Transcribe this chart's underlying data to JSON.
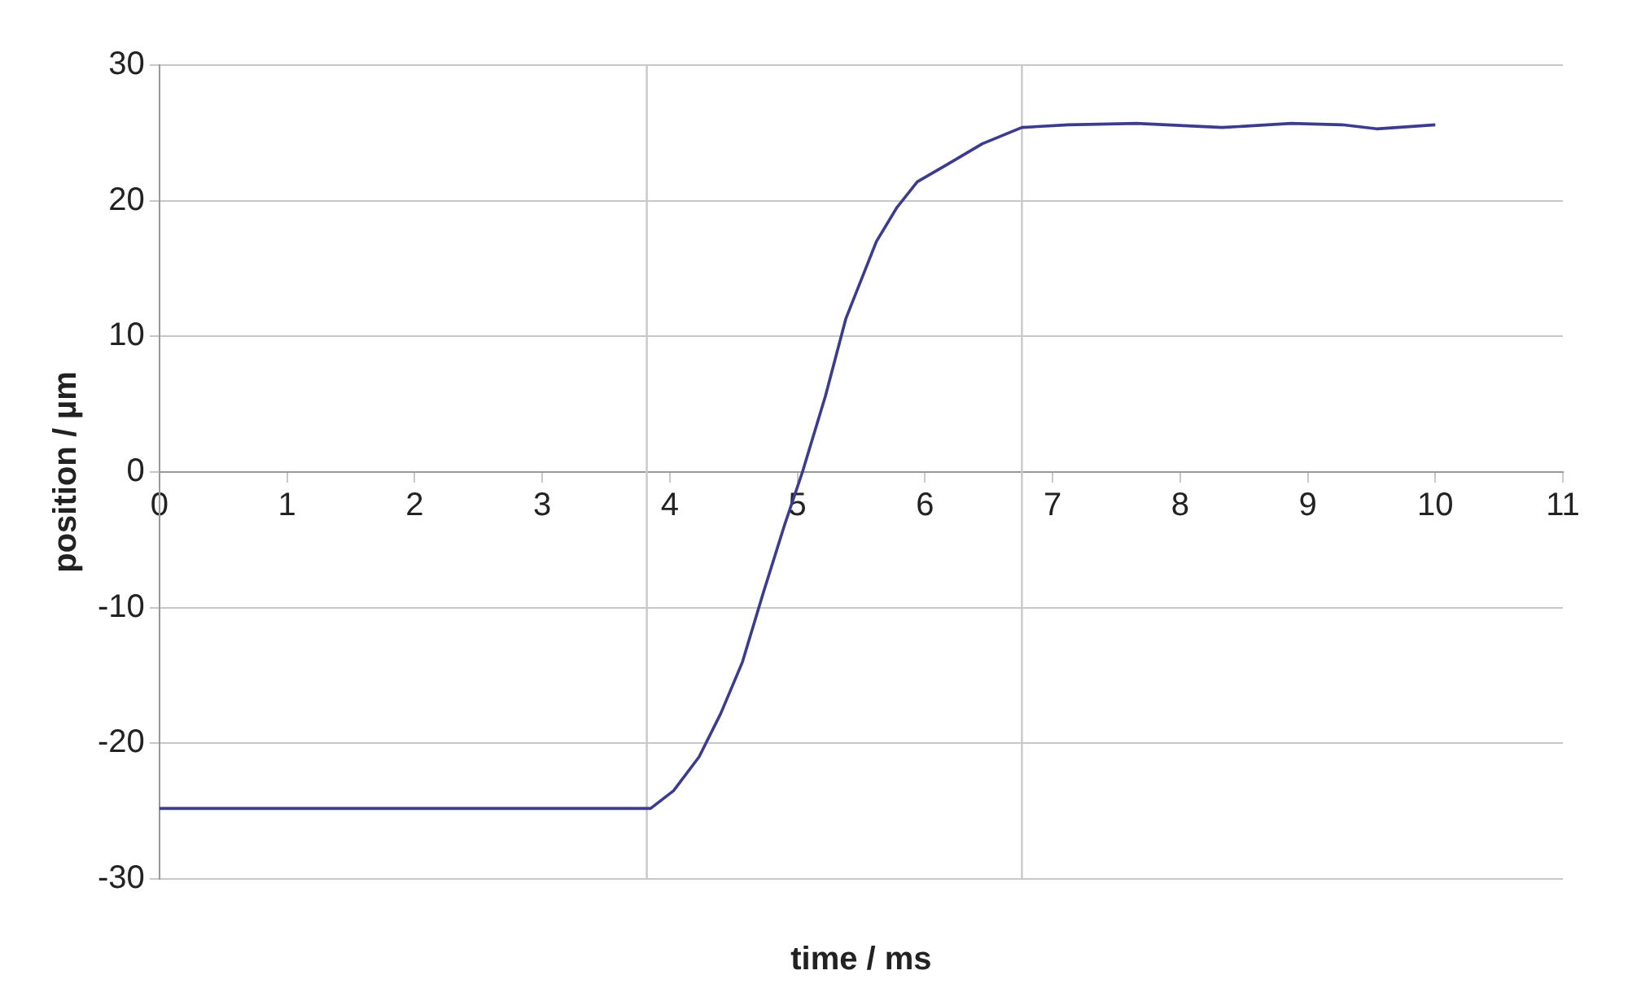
{
  "chart_data": {
    "type": "line",
    "xlabel": "time / ms",
    "ylabel": "position / µm",
    "xlim": [
      0,
      11
    ],
    "xticks": [
      0,
      1,
      2,
      3,
      4,
      5,
      6,
      7,
      8,
      9,
      10,
      11
    ],
    "ylim": [
      -30,
      30
    ],
    "yticks": [
      -30,
      -20,
      -10,
      0,
      10,
      20,
      30
    ],
    "grid": "y",
    "legend": false,
    "marker": "none",
    "line_style": "solid",
    "ref_lines": [
      {
        "axis": "x",
        "value": 3.82,
        "color": "#c8c8c8"
      },
      {
        "axis": "x",
        "value": 6.76,
        "color": "#c8c8c8"
      }
    ],
    "series": [
      {
        "color": "#3c3c8c",
        "x": [
          0,
          1,
          2,
          3,
          3.85,
          4.03,
          4.23,
          4.4,
          4.57,
          4.73,
          4.9,
          5.04,
          5.22,
          5.38,
          5.62,
          5.78,
          5.94,
          6.18,
          6.45,
          6.76,
          7.12,
          7.66,
          8.33,
          8.87,
          9.27,
          9.54,
          10.0
        ],
        "values": [
          -24.8,
          -24.8,
          -24.8,
          -24.8,
          -24.8,
          -23.5,
          -21,
          -17.8,
          -14,
          -9,
          -3.9,
          0,
          5.6,
          11.3,
          17,
          19.5,
          21.4,
          22.7,
          24.2,
          25.4,
          25.6,
          25.7,
          25.4,
          25.7,
          25.6,
          25.3,
          25.6
        ]
      }
    ]
  }
}
